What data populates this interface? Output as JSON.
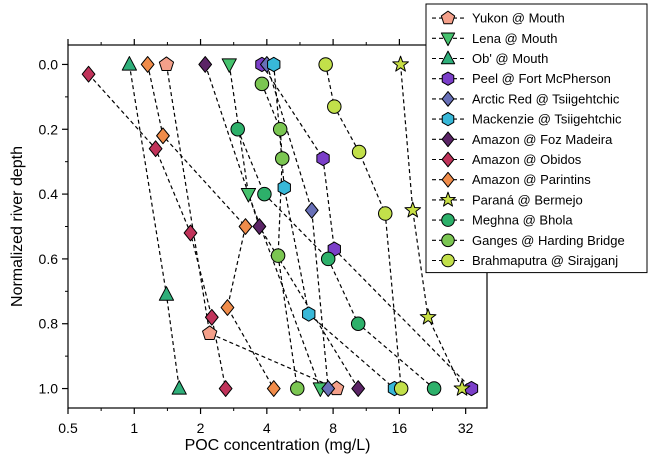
{
  "chart_data": {
    "type": "scatter",
    "title": "",
    "xlabel": "POC concentration (mg/L)",
    "ylabel": "Normalized river depth",
    "x_scale": "log2",
    "xlim": [
      0.5,
      40
    ],
    "ylim": [
      -0.06,
      1.06
    ],
    "y_inverted": true,
    "x_ticks": [
      0.5,
      1,
      2,
      4,
      8,
      16,
      32
    ],
    "x_tick_labels": [
      "0.5",
      "1",
      "2",
      "4",
      "8",
      "16",
      "32"
    ],
    "y_ticks": [
      0.0,
      0.2,
      0.4,
      0.6,
      0.8,
      1.0
    ],
    "y_tick_labels": [
      "0.0",
      "0.2",
      "0.4",
      "0.6",
      "0.8",
      "1.0"
    ],
    "grid": false,
    "legend_position": "top-right, outside plot",
    "line_style": "dashed black connecting lines",
    "series": [
      {
        "name": "Yukon @ Mouth",
        "marker": "pentagon",
        "color": "#F4A08A",
        "points": [
          [
            1.4,
            0.0
          ],
          [
            2.2,
            0.83
          ],
          [
            8.3,
            1.0
          ]
        ]
      },
      {
        "name": "Lena @ Mouth",
        "marker": "triangle-down",
        "color": "#46C36E",
        "points": [
          [
            2.7,
            0.0
          ],
          [
            3.3,
            0.4
          ],
          [
            7.0,
            1.0
          ]
        ]
      },
      {
        "name": "Ob' @ Mouth",
        "marker": "triangle-up",
        "color": "#2FAF7A",
        "points": [
          [
            0.95,
            0.0
          ],
          [
            1.4,
            0.71
          ],
          [
            1.6,
            1.0
          ]
        ]
      },
      {
        "name": "Peel @ Fort McPherson",
        "marker": "hexagon",
        "color": "#7B3FC9",
        "points": [
          [
            3.8,
            0.0
          ],
          [
            7.2,
            0.29
          ],
          [
            8.1,
            0.57
          ],
          [
            34.0,
            1.0
          ]
        ]
      },
      {
        "name": "Arctic Red @ Tsiigehtchic",
        "marker": "diamond",
        "color": "#6870B8",
        "points": [
          [
            4.0,
            0.0
          ],
          [
            6.4,
            0.45
          ],
          [
            7.6,
            1.0
          ]
        ]
      },
      {
        "name": "Mackenzie @ Tsiigehtchic",
        "marker": "hexagon",
        "color": "#38B8D8",
        "points": [
          [
            4.3,
            0.0
          ],
          [
            4.8,
            0.38
          ],
          [
            6.2,
            0.77
          ],
          [
            15.2,
            1.0
          ]
        ]
      },
      {
        "name": "Amazon @ Foz Madeira",
        "marker": "diamond",
        "color": "#5B2466",
        "points": [
          [
            2.1,
            0.0
          ],
          [
            3.7,
            0.5
          ],
          [
            10.4,
            1.0
          ]
        ]
      },
      {
        "name": "Amazon @ Obidos",
        "marker": "diamond",
        "color": "#C0335A",
        "points": [
          [
            0.62,
            0.03
          ],
          [
            1.25,
            0.26
          ],
          [
            1.8,
            0.52
          ],
          [
            2.25,
            0.78
          ],
          [
            2.6,
            1.0
          ]
        ]
      },
      {
        "name": "Amazon @ Parintins",
        "marker": "diamond",
        "color": "#F08C4A",
        "points": [
          [
            1.15,
            0.0
          ],
          [
            1.35,
            0.22
          ],
          [
            3.2,
            0.5
          ],
          [
            2.65,
            0.75
          ],
          [
            4.3,
            1.0
          ]
        ]
      },
      {
        "name": "Paraná @ Bermejo",
        "marker": "star",
        "color": "#C8DF45",
        "points": [
          [
            16.2,
            0.0
          ],
          [
            18.4,
            0.45
          ],
          [
            21.6,
            0.78
          ],
          [
            30.8,
            1.0
          ]
        ]
      },
      {
        "name": "Meghna @ Bhola",
        "marker": "circle",
        "color": "#2DB06A",
        "points": [
          [
            2.95,
            0.2
          ],
          [
            3.9,
            0.4
          ],
          [
            7.6,
            0.6
          ],
          [
            10.4,
            0.8
          ],
          [
            23.0,
            1.0
          ]
        ]
      },
      {
        "name": "Ganges @ Harding Bridge",
        "marker": "circle",
        "color": "#7BC652",
        "points": [
          [
            3.8,
            0.06
          ],
          [
            4.6,
            0.2
          ],
          [
            4.7,
            0.29
          ],
          [
            4.5,
            0.59
          ],
          [
            5.5,
            1.0
          ]
        ]
      },
      {
        "name": "Brahmaputra @ Sirajganj",
        "marker": "circle",
        "color": "#C2E04A",
        "points": [
          [
            7.4,
            0.0
          ],
          [
            8.1,
            0.13
          ],
          [
            10.5,
            0.27
          ],
          [
            13.8,
            0.46
          ],
          [
            16.3,
            1.0
          ]
        ]
      }
    ]
  }
}
